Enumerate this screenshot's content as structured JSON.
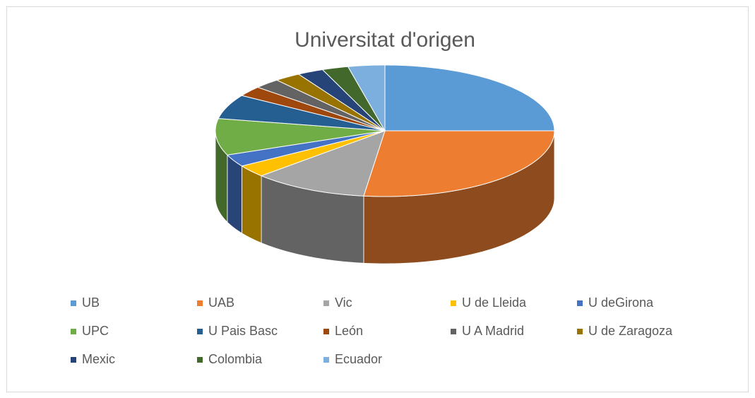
{
  "chart_data": {
    "type": "pie3d",
    "title": "Universitat d'origen",
    "categories": [
      "UB",
      "UAB",
      "Vic",
      "U  de Lleida",
      "U deGirona",
      "UPC",
      "U Pais Basc",
      "León",
      "U A Madrid",
      "U de Zaragoza",
      "Mexic",
      "Colombia",
      "Ecuador"
    ],
    "values": [
      25,
      27,
      11,
      3,
      3,
      9,
      6,
      2.5,
      2.5,
      2.5,
      2.5,
      2.5,
      3.5
    ],
    "colors": [
      "#5b9bd5",
      "#ed7d31",
      "#a5a5a5",
      "#ffc000",
      "#4472c4",
      "#70ad47",
      "#255e91",
      "#9e480e",
      "#636363",
      "#997300",
      "#264478",
      "#43682b",
      "#7cafdd"
    ],
    "legend": "bottom"
  }
}
